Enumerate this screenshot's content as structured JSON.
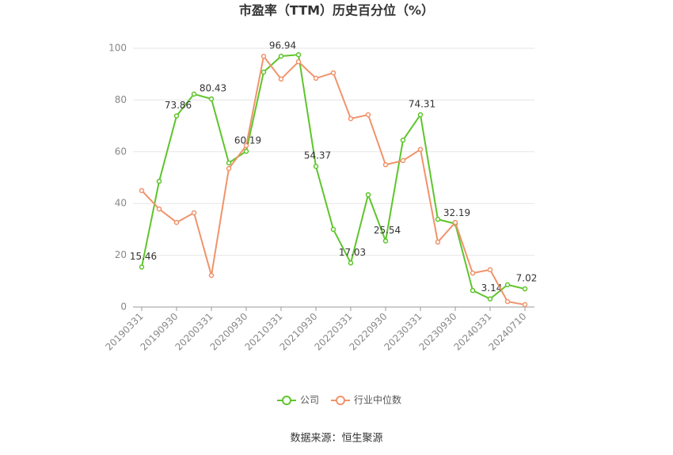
{
  "chart_data": {
    "type": "line",
    "title": "市盈率（TTM）历史百分位（%）",
    "source": "数据来源：恒生聚源",
    "categories": [
      "20190331",
      null,
      "20190930",
      null,
      "20200331",
      null,
      "20200930",
      null,
      "20210331",
      null,
      "20210930",
      null,
      "20220331",
      null,
      "20220930",
      null,
      "20230331",
      null,
      "20230930",
      null,
      "20240331",
      null,
      "20240710"
    ],
    "series": [
      {
        "name": "公司",
        "color": "#5ec52b",
        "values": [
          15.46,
          48.6,
          73.86,
          82.3,
          80.43,
          55.7,
          60.19,
          90.8,
          96.94,
          97.5,
          54.37,
          30.0,
          17.03,
          43.4,
          25.54,
          64.5,
          74.31,
          33.9,
          32.19,
          6.4,
          3.14,
          8.6,
          7.02
        ],
        "value_labels": [
          "15.46",
          null,
          "73.86",
          null,
          "80.43",
          null,
          "60.19",
          null,
          "96.94",
          null,
          "54.37",
          null,
          "17.03",
          null,
          "25.54",
          null,
          "74.31",
          null,
          "32.19",
          null,
          "3.14",
          null,
          "7.02"
        ]
      },
      {
        "name": "行业中位数",
        "color": "#f0936b",
        "values": [
          45.0,
          37.9,
          32.7,
          36.4,
          12.2,
          53.5,
          62.4,
          96.9,
          88.1,
          94.8,
          88.4,
          90.5,
          72.8,
          74.3,
          55.0,
          56.6,
          60.9,
          25.1,
          32.7,
          13.1,
          14.4,
          2.1,
          0.9
        ]
      }
    ],
    "ylim": [
      0,
      100
    ],
    "yticks": [
      0,
      20,
      40,
      60,
      80,
      100
    ],
    "grid": true,
    "legend": "bottom"
  }
}
